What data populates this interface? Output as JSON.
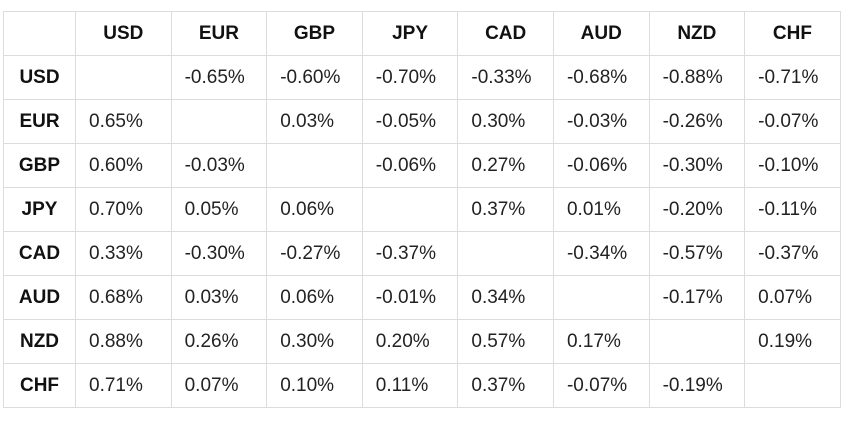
{
  "top_clipped_text": "",
  "chart_data": {
    "type": "table",
    "columns": [
      "USD",
      "EUR",
      "GBP",
      "JPY",
      "CAD",
      "AUD",
      "NZD",
      "CHF"
    ],
    "rows": [
      {
        "label": "USD",
        "cells": [
          "",
          "-0.65%",
          "-0.60%",
          "-0.70%",
          "-0.33%",
          "-0.68%",
          "-0.88%",
          "-0.71%"
        ]
      },
      {
        "label": "EUR",
        "cells": [
          "0.65%",
          "",
          "0.03%",
          "-0.05%",
          "0.30%",
          "-0.03%",
          "-0.26%",
          "-0.07%"
        ]
      },
      {
        "label": "GBP",
        "cells": [
          "0.60%",
          "-0.03%",
          "",
          "-0.06%",
          "0.27%",
          "-0.06%",
          "-0.30%",
          "-0.10%"
        ]
      },
      {
        "label": "JPY",
        "cells": [
          "0.70%",
          "0.05%",
          "0.06%",
          "",
          "0.37%",
          "0.01%",
          "-0.20%",
          "-0.11%"
        ]
      },
      {
        "label": "CAD",
        "cells": [
          "0.33%",
          "-0.30%",
          "-0.27%",
          "-0.37%",
          "",
          "-0.34%",
          "-0.57%",
          "-0.37%"
        ]
      },
      {
        "label": "AUD",
        "cells": [
          "0.68%",
          "0.03%",
          "0.06%",
          "-0.01%",
          "0.34%",
          "",
          "-0.17%",
          "0.07%"
        ]
      },
      {
        "label": "NZD",
        "cells": [
          "0.88%",
          "0.26%",
          "0.30%",
          "0.20%",
          "0.57%",
          "0.17%",
          "",
          "0.19%"
        ]
      },
      {
        "label": "CHF",
        "cells": [
          "0.71%",
          "0.07%",
          "0.10%",
          "0.11%",
          "0.37%",
          "-0.07%",
          "-0.19%",
          ""
        ]
      }
    ]
  }
}
